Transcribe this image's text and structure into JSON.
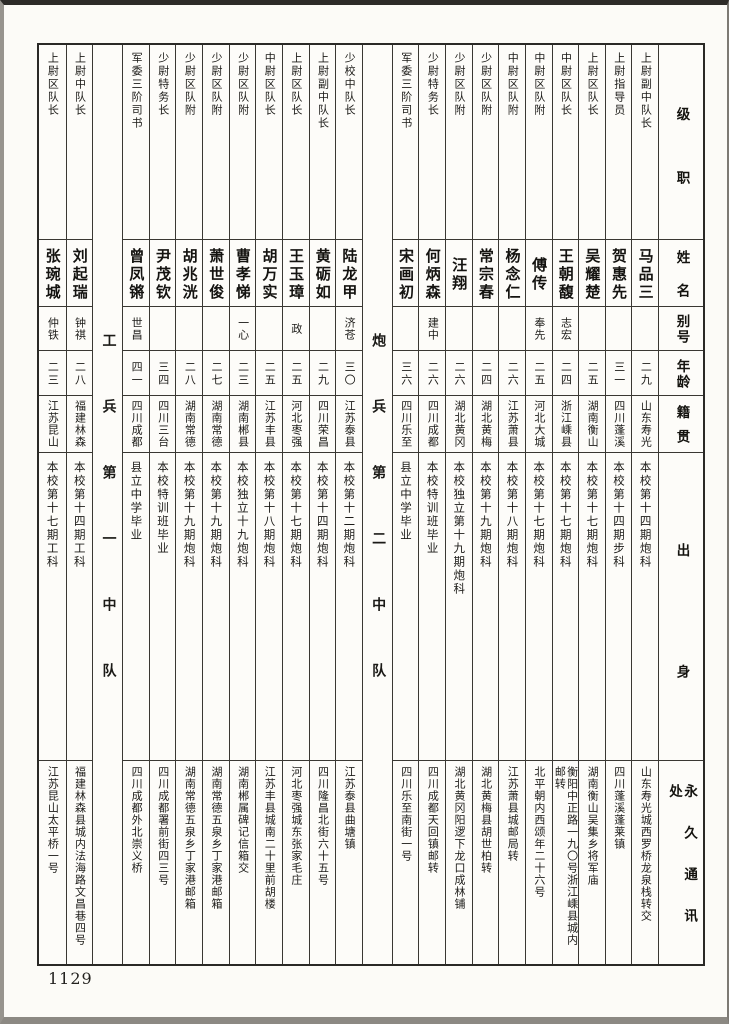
{
  "page_number": "1129",
  "table": {
    "row_headers": {
      "rank": "级职",
      "name": "姓名",
      "alias": "别号",
      "age": "年龄",
      "native_place": "籍贯",
      "background": "出身",
      "permanent_address": "永久通讯处"
    },
    "columns_right_to_left": [
      {
        "type": "person",
        "rank": "上尉副中队长",
        "name": "马品三",
        "alias": "",
        "age": "二九",
        "native_place": "山东寿光",
        "background": "本校第十四期炮科",
        "permanent_address": "山东寿光城西罗桥龙泉栈转交"
      },
      {
        "type": "person",
        "rank": "上尉指导员",
        "name": "贺惠先",
        "alias": "",
        "age": "三一",
        "native_place": "四川蓬溪",
        "background": "本校第十四期步科",
        "permanent_address": "四川蓬溪蓬莱镇"
      },
      {
        "type": "person",
        "rank": "上尉区队长",
        "name": "吴耀楚",
        "alias": "",
        "age": "二五",
        "native_place": "湖南衡山",
        "background": "本校第十七期炮科",
        "permanent_address": "湖南衡山吴集乡将军庙"
      },
      {
        "type": "person",
        "rank": "中尉区队长",
        "name": "王朝馥",
        "alias": "志宏",
        "age": "二四",
        "native_place": "浙江嵊县",
        "background": "本校第十七期炮科",
        "permanent_address": "衡阳中正路一九〇号浙江嵊县城内邮转"
      },
      {
        "type": "person",
        "rank": "中尉区队附",
        "name": "傅传",
        "alias": "奉先",
        "age": "二五",
        "native_place": "河北大城",
        "background": "本校第十七期炮科",
        "permanent_address": "北平朝内西颂年二十六号"
      },
      {
        "type": "person",
        "rank": "中尉区队附",
        "name": "杨念仁",
        "alias": "",
        "age": "二六",
        "native_place": "江苏萧县",
        "background": "本校第十八期炮科",
        "permanent_address": "江苏萧县城邮局转"
      },
      {
        "type": "person",
        "rank": "少尉区队附",
        "name": "常宗春",
        "alias": "",
        "age": "二四",
        "native_place": "湖北黄梅",
        "background": "本校第十九期炮科",
        "permanent_address": "湖北黄梅县胡世柏转"
      },
      {
        "type": "person",
        "rank": "少尉区队附",
        "name": "汪翔",
        "alias": "",
        "age": "二六",
        "native_place": "湖北黄冈",
        "background": "本校独立第十九期炮科",
        "permanent_address": "湖北黄冈阳逻下龙口成林铺"
      },
      {
        "type": "person",
        "rank": "少尉特务长",
        "name": "何炳森",
        "alias": "建中",
        "age": "二六",
        "native_place": "四川成都",
        "background": "本校特训班毕业",
        "permanent_address": "四川成都天回镇邮转"
      },
      {
        "type": "person",
        "rank": "军委三阶司书",
        "name": "宋画初",
        "alias": "",
        "age": "三六",
        "native_place": "四川乐至",
        "background": "县立中学毕业",
        "permanent_address": "四川乐至南街一号"
      },
      {
        "type": "divider",
        "label": "炮兵第二中队"
      },
      {
        "type": "person",
        "rank": "少校中队长",
        "name": "陆龙甲",
        "alias": "济苍",
        "age": "三〇",
        "native_place": "江苏泰县",
        "background": "本校第十二期炮科",
        "permanent_address": "江苏泰县曲塘镇"
      },
      {
        "type": "person",
        "rank": "上尉副中队长",
        "name": "黄砺如",
        "alias": "",
        "age": "二九",
        "native_place": "四川荣昌",
        "background": "本校第十四期炮科",
        "permanent_address": "四川隆昌北街六十五号"
      },
      {
        "type": "person",
        "rank": "上尉区队长",
        "name": "王玉璋",
        "alias": "政",
        "age": "二五",
        "native_place": "河北枣强",
        "background": "本校第十七期炮科",
        "permanent_address": "河北枣强城东张家毛庄"
      },
      {
        "type": "person",
        "rank": "中尉区队长",
        "name": "胡万实",
        "alias": "",
        "age": "二五",
        "native_place": "江苏丰县",
        "background": "本校第十八期炮科",
        "permanent_address": "江苏丰县城南二十里前胡楼"
      },
      {
        "type": "person",
        "rank": "少尉区队附",
        "name": "曹孝悌",
        "alias": "一心",
        "age": "二三",
        "native_place": "湖南郴县",
        "background": "本校独立十九炮科",
        "permanent_address": "湖南郴属碑记信箱交"
      },
      {
        "type": "person",
        "rank": "少尉区队附",
        "name": "萧世俊",
        "alias": "",
        "age": "二七",
        "native_place": "湖南常德",
        "background": "本校第十九期炮科",
        "permanent_address": "湖南常德五泉乡丁家港邮箱"
      },
      {
        "type": "person",
        "rank": "少尉区队附",
        "name": "胡兆洸",
        "alias": "",
        "age": "二八",
        "native_place": "湖南常德",
        "background": "本校第十九期炮科",
        "permanent_address": "湖南常德五泉乡丁家港邮箱"
      },
      {
        "type": "person",
        "rank": "少尉特务长",
        "name": "尹茂钦",
        "alias": "",
        "age": "三四",
        "native_place": "四川三台",
        "background": "本校特训班毕业",
        "permanent_address": "四川成都署前街四三号"
      },
      {
        "type": "person",
        "rank": "军委三阶司书",
        "name": "曾凤锵",
        "alias": "世昌",
        "age": "四一",
        "native_place": "四川成都",
        "background": "县立中学毕业",
        "permanent_address": "四川成都外北崇义桥"
      },
      {
        "type": "divider",
        "label": "工兵第一中队"
      },
      {
        "type": "person",
        "rank": "上尉中队长",
        "name": "刘起瑞",
        "alias": "钟祺",
        "age": "二八",
        "native_place": "福建林森",
        "background": "本校第十四期工科",
        "permanent_address": "福建林森县城内法海路文昌巷四号"
      },
      {
        "type": "person",
        "rank": "上尉区队长",
        "name": "张琬城",
        "alias": "仲铁",
        "age": "二三",
        "native_place": "江苏昆山",
        "background": "本校第十七期工科",
        "permanent_address": "江苏昆山太平桥一号"
      }
    ]
  }
}
